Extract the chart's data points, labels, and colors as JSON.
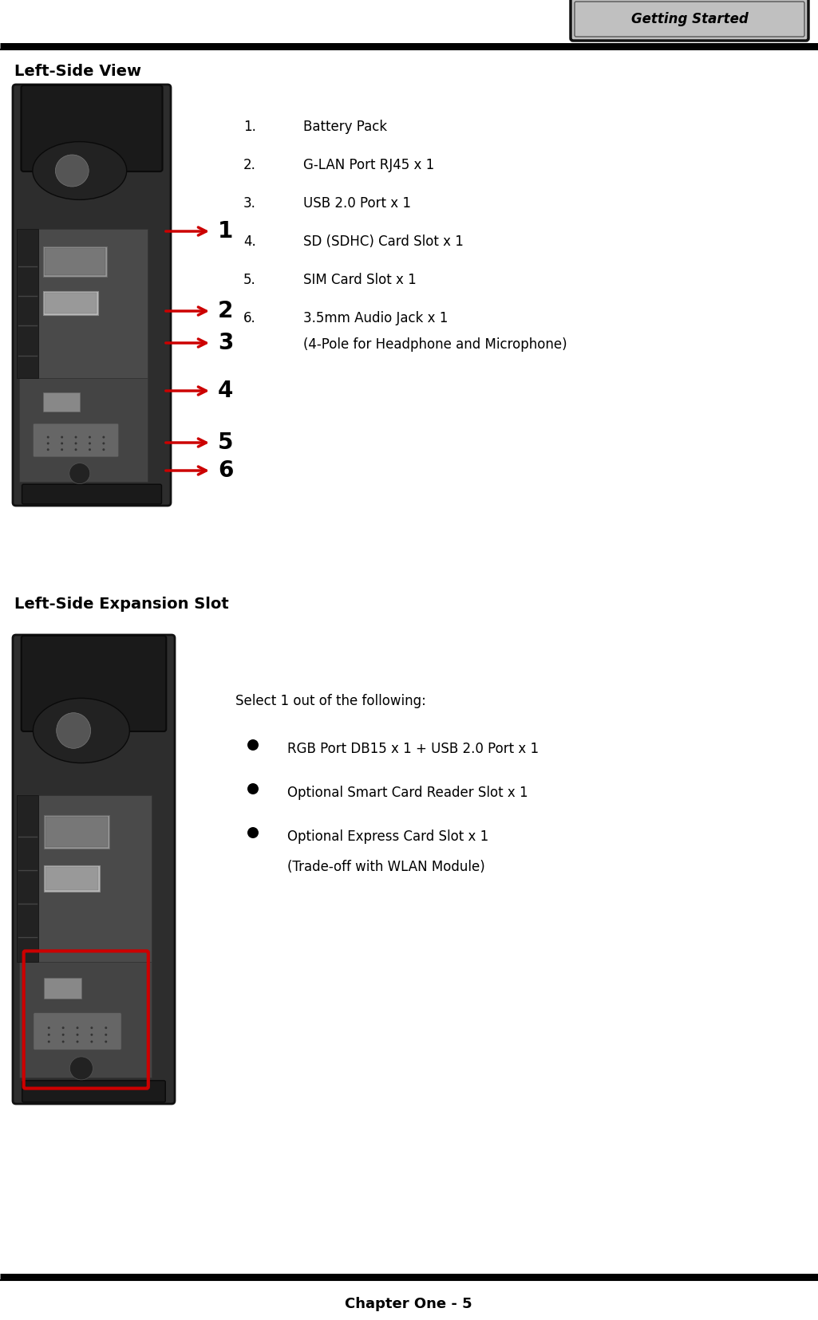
{
  "page_title": "Getting Started",
  "section1_title": "Left-Side View",
  "section2_title": "Left-Side Expansion Slot",
  "items": [
    "Battery Pack",
    "G-LAN Port RJ45 x 1",
    "USB 2.0 Port x 1",
    "SD (SDHC) Card Slot x 1",
    "SIM Card Slot x 1",
    "3.5mm Audio Jack x 1"
  ],
  "item6_sub": "(4-Pole for Headphone and Microphone)",
  "expansion_intro": "Select 1 out of the following:",
  "expansion_items": [
    "RGB Port DB15 x 1 + USB 2.0 Port x 1",
    "Optional Smart Card Reader Slot x 1",
    "Optional Express Card Slot x 1"
  ],
  "expansion_item3_sub": "(Trade-off with WLAN Module)",
  "footer": "Chapter One - 5",
  "bg_color": "#ffffff",
  "text_color": "#000000",
  "arrow_color": "#cc0000",
  "tab_bg": "#c0c0c0",
  "tab_border": "#000000",
  "device_dark": "#1c1c1c",
  "device_mid": "#3a3a3a",
  "device_light": "#888888",
  "device_port_light": "#aaaaaa",
  "device_port_mid": "#777777",
  "highlight_color": "#cc0000"
}
